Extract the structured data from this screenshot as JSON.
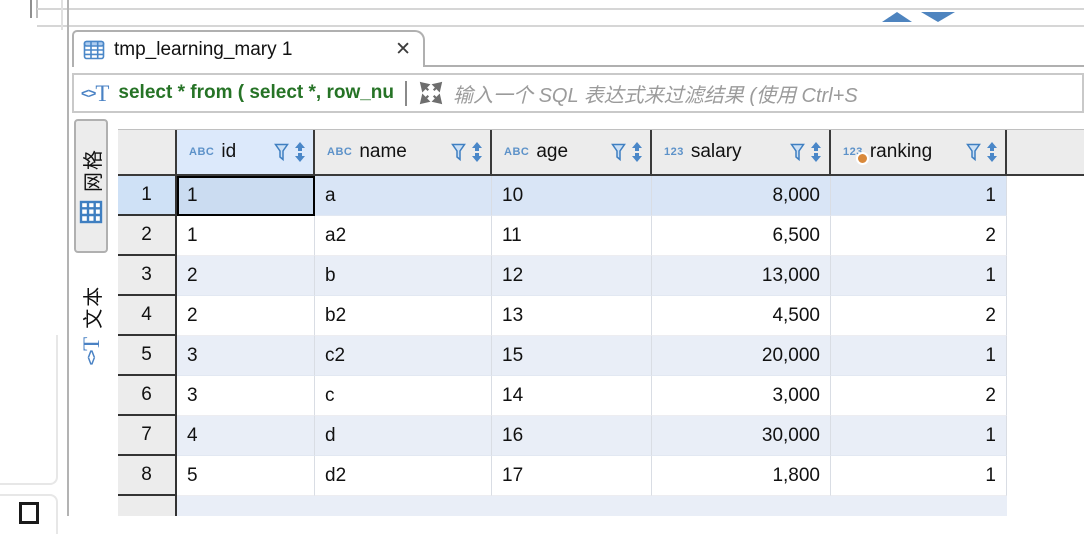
{
  "tab": {
    "title": "tmp_learning_mary 1",
    "close_glyph": "✕"
  },
  "filter_bar": {
    "sql_text": "select * from ( select *, row_nu",
    "placeholder": "输入一个 SQL 表达式来过滤结果 (使用 Ctrl+S",
    "icon": {
      "angles": "<>",
      "tee": "T"
    }
  },
  "side_tabs": {
    "grid_label": "网格",
    "text_label": "文本",
    "text_icon": {
      "angles": "<>",
      "tee": "T"
    }
  },
  "grid": {
    "columns": [
      {
        "key": "id",
        "label": "id",
        "type_icon": "ABC"
      },
      {
        "key": "name",
        "label": "name",
        "type_icon": "ABC"
      },
      {
        "key": "age",
        "label": "age",
        "type_icon": "ABC"
      },
      {
        "key": "salary",
        "label": "salary",
        "type_icon": "123"
      },
      {
        "key": "ranking",
        "label": "ranking",
        "type_icon": "123",
        "has_badge": true
      }
    ],
    "rows": [
      {
        "num": "1",
        "id": "1",
        "name": "a",
        "age": "10",
        "salary": "8,000",
        "ranking": "1"
      },
      {
        "num": "2",
        "id": "1",
        "name": "a2",
        "age": "11",
        "salary": "6,500",
        "ranking": "2"
      },
      {
        "num": "3",
        "id": "2",
        "name": "b",
        "age": "12",
        "salary": "13,000",
        "ranking": "1"
      },
      {
        "num": "4",
        "id": "2",
        "name": "b2",
        "age": "13",
        "salary": "4,500",
        "ranking": "2"
      },
      {
        "num": "5",
        "id": "3",
        "name": "c2",
        "age": "15",
        "salary": "20,000",
        "ranking": "1"
      },
      {
        "num": "6",
        "id": "3",
        "name": "c",
        "age": "14",
        "salary": "3,000",
        "ranking": "2"
      },
      {
        "num": "7",
        "id": "4",
        "name": "d",
        "age": "16",
        "salary": "30,000",
        "ranking": "1"
      },
      {
        "num": "8",
        "id": "5",
        "name": "d2",
        "age": "17",
        "salary": "1,800",
        "ranking": "1"
      }
    ]
  },
  "colors": {
    "accent_blue": "#4a87c8",
    "sql_green": "#267326",
    "stripe_blue": "#e9eef7",
    "selected_row": "#d9e5f6",
    "selected_cell": "#cbdcf1",
    "selected_header": "#dce9fb",
    "badge_orange": "#d9893b",
    "dark_gridline": "#3a3a3a"
  }
}
